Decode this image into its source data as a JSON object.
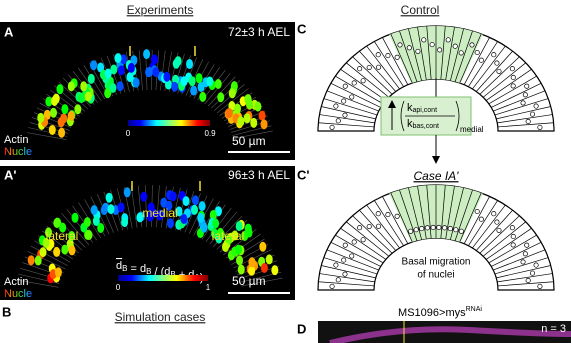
{
  "panel_labels": {
    "A": "A",
    "A_prime": "A'",
    "B": "B",
    "C": "C",
    "C_prime": "C'",
    "D": "D"
  },
  "headers": {
    "experiments": "Experiments",
    "control": "Control",
    "simulation": "Simulation cases",
    "case": "Case IA'"
  },
  "panel_A": {
    "stage": "72±3 h AEL",
    "colorbar_min": "0",
    "colorbar_max": "0.9",
    "scale": "50 µm",
    "channel_1": "Actin",
    "channel_2": "Nucle"
  },
  "panel_A_prime": {
    "stage": "96±3 h AEL",
    "region_medial": "medial",
    "region_lateral_left": "lateral",
    "region_lateral_right": "lateral",
    "formula": [
      {
        "t": "d",
        "s": "B"
      },
      {
        "t": " = d",
        "s": "B"
      },
      {
        "t": " / (d",
        "s": "B"
      },
      {
        "t": " + d",
        "s": "A"
      },
      {
        "t": ")"
      }
    ],
    "colorbar_min": "0",
    "colorbar_max": "1",
    "scale": "50 µm",
    "channel_1": "Actin",
    "channel_2": "Nucle"
  },
  "panel_C": {
    "ratio_numerator": {
      "t": "k",
      "s": "api,cont"
    },
    "ratio_denominator": {
      "t": "k",
      "s": "bas,cont"
    },
    "ratio_subscript": "medial",
    "description": [
      "Basal migration",
      "of nuclei"
    ]
  },
  "panel_D": {
    "genotype": "MS1096>mys",
    "genotype_sup": "RNAi",
    "count": "n = 3"
  }
}
